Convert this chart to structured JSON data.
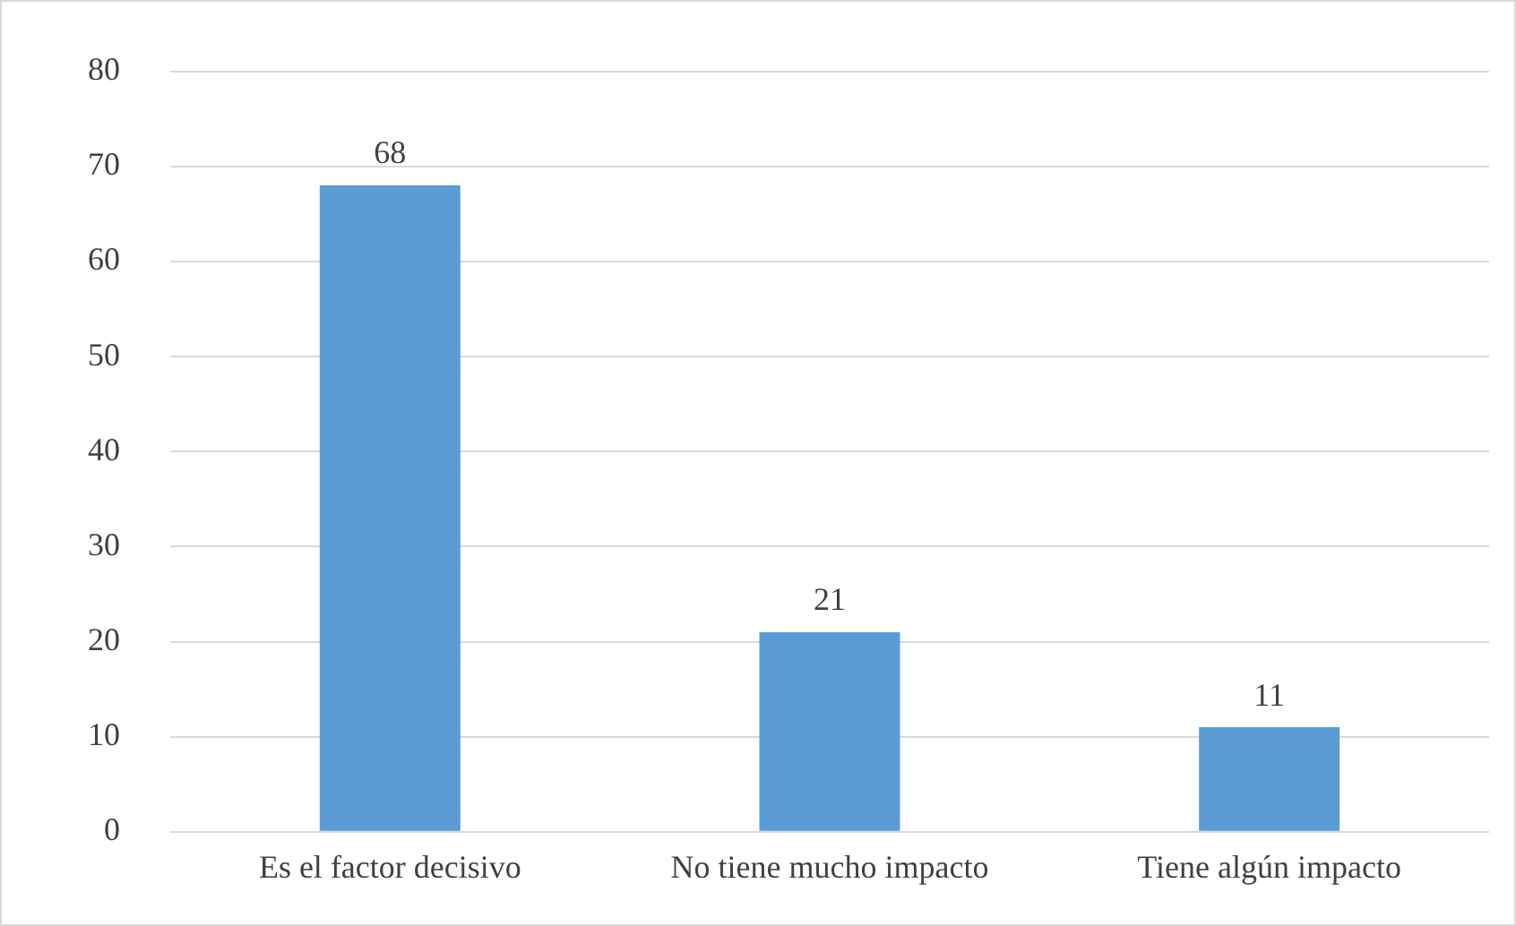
{
  "chart_data": {
    "type": "bar",
    "categories": [
      "Es el factor decisivo",
      "No tiene mucho impacto",
      "Tiene algún impacto"
    ],
    "values": [
      68,
      21,
      11
    ],
    "color": "#5b9bd5",
    "ylim": [
      0,
      80
    ],
    "yticks": [
      0,
      10,
      20,
      30,
      40,
      50,
      60,
      70,
      80
    ],
    "grid": "y",
    "data_labels": true,
    "legend": false
  }
}
